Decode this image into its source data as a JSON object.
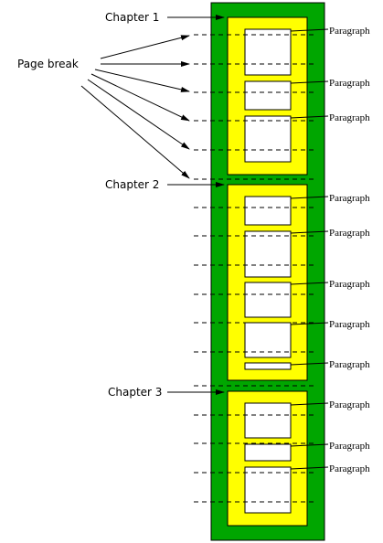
{
  "diagram": {
    "page_break_label": "Page break",
    "chapter_labels": [
      "Chapter 1",
      "Chapter 2",
      "Chapter 3"
    ],
    "paragraph_label": "Paragraph",
    "colors": {
      "document": "#00a600",
      "chapter": "#ffff00",
      "paragraph": "#ffffff",
      "line": "#000000"
    }
  }
}
